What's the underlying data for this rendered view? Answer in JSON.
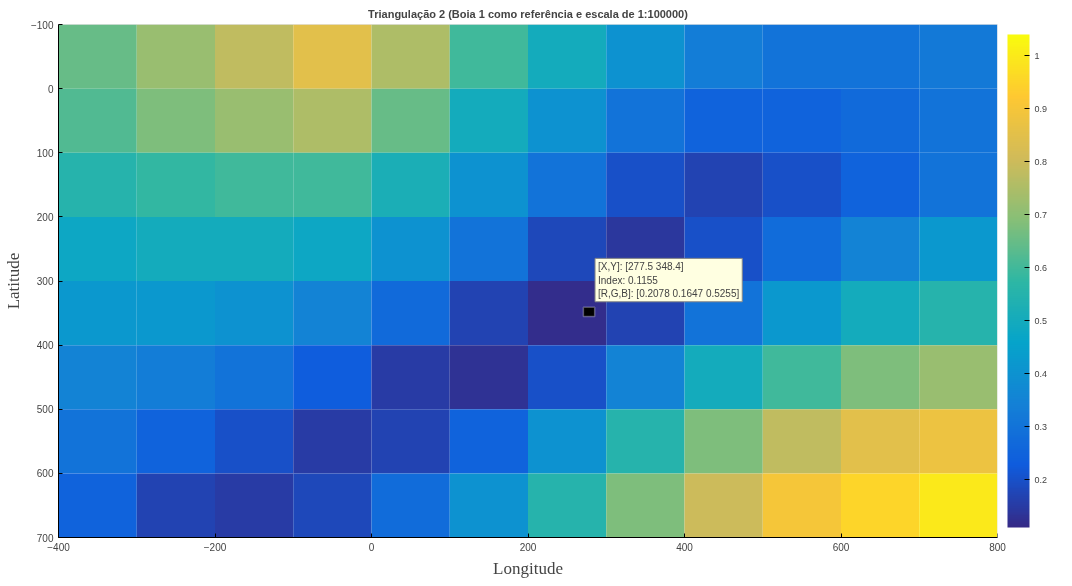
{
  "chart_data": {
    "type": "heatmap",
    "title": "Triangulação 2 (Boia 1 como referência e escala de 1:100000)",
    "xlabel": "Longitude",
    "ylabel": "Latitude",
    "x": [
      -350,
      -250,
      -150,
      -50,
      50,
      150,
      250,
      350,
      450,
      550,
      650,
      750
    ],
    "y": [
      -50,
      50,
      150,
      250,
      350,
      450,
      550,
      650
    ],
    "cells": [
      [
        0.65,
        0.72,
        0.78,
        0.85,
        0.75,
        0.6,
        0.5,
        0.4,
        0.33,
        0.3,
        0.3,
        0.32
      ],
      [
        0.62,
        0.68,
        0.72,
        0.75,
        0.65,
        0.5,
        0.4,
        0.3,
        0.25,
        0.25,
        0.27,
        0.3
      ],
      [
        0.55,
        0.58,
        0.6,
        0.6,
        0.52,
        0.4,
        0.3,
        0.2,
        0.17,
        0.2,
        0.25,
        0.3
      ],
      [
        0.48,
        0.5,
        0.5,
        0.48,
        0.4,
        0.3,
        0.18,
        0.14,
        0.2,
        0.28,
        0.35,
        0.42
      ],
      [
        0.42,
        0.42,
        0.4,
        0.35,
        0.27,
        0.17,
        0.12,
        0.17,
        0.3,
        0.42,
        0.5,
        0.55
      ],
      [
        0.35,
        0.33,
        0.3,
        0.23,
        0.15,
        0.13,
        0.2,
        0.35,
        0.5,
        0.6,
        0.68,
        0.72
      ],
      [
        0.3,
        0.25,
        0.2,
        0.15,
        0.17,
        0.25,
        0.4,
        0.55,
        0.68,
        0.78,
        0.85,
        0.88
      ],
      [
        0.25,
        0.17,
        0.15,
        0.18,
        0.28,
        0.4,
        0.55,
        0.68,
        0.8,
        0.9,
        0.95,
        1.0
      ]
    ],
    "xlim": [
      -400,
      800
    ],
    "ylim": [
      700,
      -100
    ],
    "xticks": [
      -400,
      -200,
      0,
      200,
      400,
      600,
      800
    ],
    "yticks": [
      -100,
      0,
      100,
      200,
      300,
      400,
      500,
      600,
      700
    ],
    "clim": [
      0.11,
      1.04
    ],
    "cticks": [
      0.2,
      0.3,
      0.4,
      0.5,
      0.6,
      0.7,
      0.8,
      0.9,
      1
    ],
    "annotations": [
      "[X,Y]: [277.5 348.4]\nIndex: 0.1155\n[R,G,B]: [0.2078 0.1647 0.5255]"
    ]
  }
}
